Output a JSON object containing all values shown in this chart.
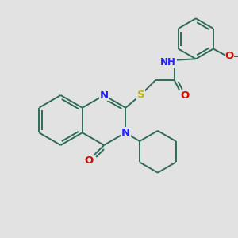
{
  "background_color": "#e2e2e2",
  "bond_color": "#2d6b5a",
  "N_color": "#2020ff",
  "O_color": "#cc1100",
  "S_color": "#b8b800",
  "bond_width": 1.4,
  "font_size": 9.5,
  "xlim": [
    0,
    10
  ],
  "ylim": [
    0,
    10
  ]
}
